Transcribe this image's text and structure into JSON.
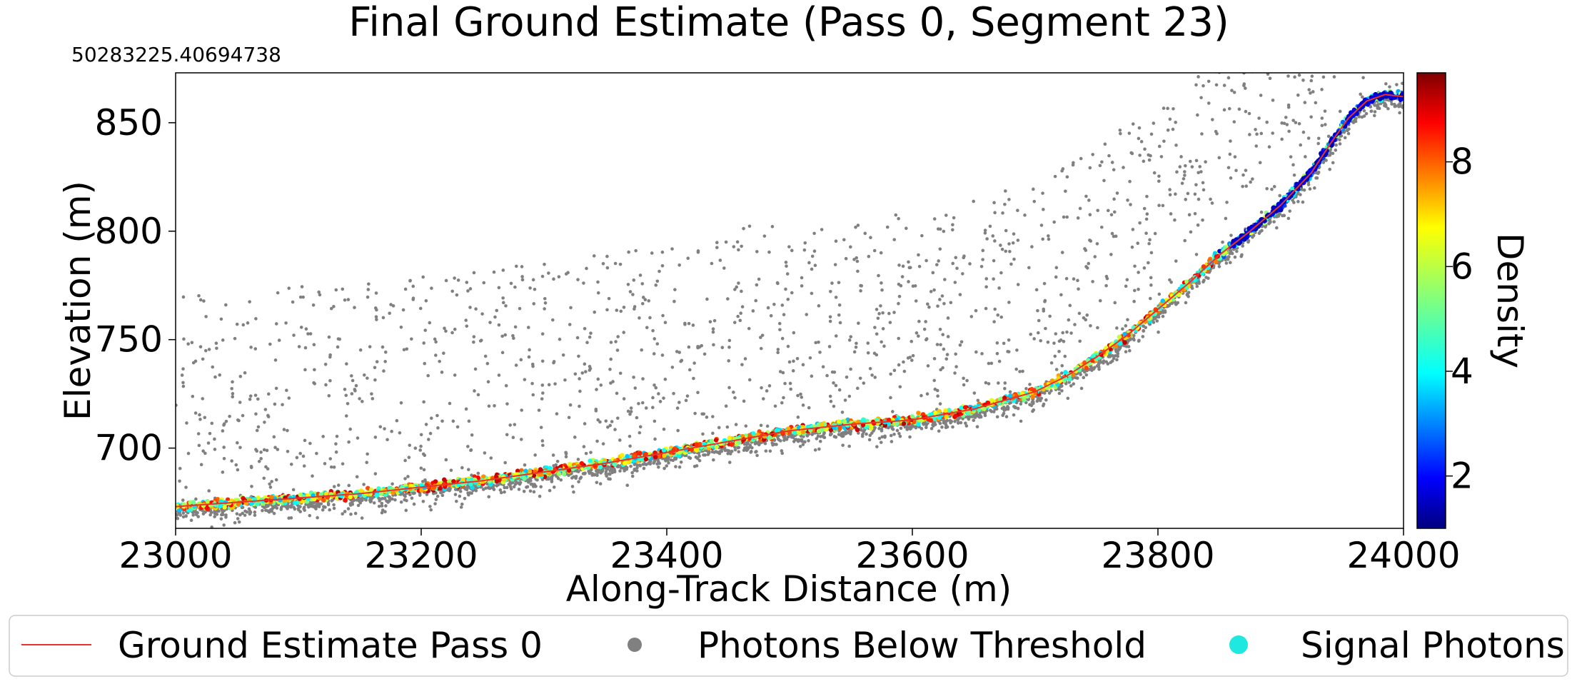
{
  "chart_data": {
    "type": "scatter",
    "title": "Final Ground Estimate (Pass 0, Segment 23)",
    "offset_text": "50283225.40694738",
    "xlabel": "Along-Track Distance (m)",
    "ylabel": "Elevation (m)",
    "xlim": [
      23000,
      24000
    ],
    "ylim": [
      663,
      873
    ],
    "x_ticks": [
      23000,
      23200,
      23400,
      23600,
      23800,
      24000
    ],
    "y_ticks": [
      700,
      750,
      800,
      850
    ],
    "grid": false,
    "colorbar": {
      "label": "Density",
      "colormap": "jet",
      "range": [
        1,
        9.7
      ],
      "ticks": [
        2,
        4,
        6,
        8
      ]
    },
    "ground_estimate": {
      "name": "Ground Estimate Pass 0",
      "color": "#e8322b",
      "x": [
        23000,
        23050,
        23100,
        23150,
        23200,
        23250,
        23300,
        23350,
        23400,
        23450,
        23500,
        23550,
        23600,
        23650,
        23700,
        23725,
        23750,
        23775,
        23800,
        23825,
        23850,
        23875,
        23900,
        23925,
        23940,
        23955,
        23970,
        23985,
        24000
      ],
      "y": [
        673,
        675,
        677,
        679,
        682,
        685,
        689,
        693,
        698,
        703,
        708,
        711,
        713,
        718,
        726,
        733,
        742,
        752,
        764,
        776,
        789,
        800,
        812,
        827,
        840,
        852,
        860,
        863,
        862
      ]
    },
    "legend": {
      "placement": "bottom",
      "entries": [
        {
          "label": "Ground Estimate Pass 0",
          "marker": "line",
          "color": "#e8322b"
        },
        {
          "label": "Photons Below Threshold",
          "marker": "dot",
          "color": "#808080"
        },
        {
          "label": "Signal Photons",
          "marker": "dot",
          "color": "#1ee8e0"
        }
      ]
    },
    "colors": {
      "noise_photons": "#808080",
      "signal_photons": "#1ee8e0"
    }
  }
}
